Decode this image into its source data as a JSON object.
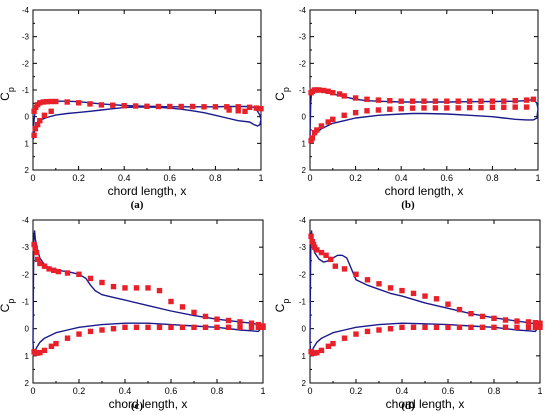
{
  "figure": {
    "captions": [
      "(a)",
      "(b)",
      "(c)",
      "(d)"
    ]
  },
  "colors": {
    "line": "#1a1a8c",
    "marker": "#e8202a",
    "axis": "#000000",
    "background": "#ffffff"
  },
  "chart_data": [
    {
      "type": "line",
      "panel": "a",
      "xlabel": "chord length, x",
      "ylabel": "Cp",
      "xlim": [
        0,
        1
      ],
      "ylim": [
        -4,
        2
      ],
      "y_inverted": true,
      "xticks": [
        0,
        0.2,
        0.4,
        0.6,
        0.8,
        1
      ],
      "xtick_labels": [
        "0",
        "0.2",
        "0.4",
        "0.6",
        "0.8",
        "1"
      ],
      "yticks": [
        -4,
        -3,
        -2,
        -1,
        0,
        1,
        2
      ],
      "ytick_labels": [
        "-4",
        "-3",
        "-2",
        "-1",
        "0",
        "1",
        "2"
      ],
      "grid": false,
      "series": [
        {
          "kind": "line",
          "x": [
            0,
            0.005,
            0.01,
            0.02,
            0.04,
            0.06,
            0.1,
            0.15,
            0.2,
            0.25,
            0.3,
            0.35,
            0.4,
            0.45,
            0.5,
            0.55,
            0.6,
            0.65,
            0.7,
            0.75,
            0.8,
            0.85,
            0.9,
            0.94,
            0.97,
            0.985,
            0.995,
            1.0,
            0.995,
            0.985,
            0.97,
            0.95,
            0.9,
            0.85,
            0.8,
            0.75,
            0.7,
            0.65,
            0.6,
            0.55,
            0.5,
            0.45,
            0.4,
            0.35,
            0.3,
            0.25,
            0.2,
            0.15,
            0.1,
            0.06,
            0.04,
            0.02,
            0.01,
            0.005,
            0.003,
            0
          ],
          "y": [
            0.85,
            0.1,
            -0.2,
            -0.4,
            -0.5,
            -0.55,
            -0.58,
            -0.58,
            -0.56,
            -0.52,
            -0.48,
            -0.45,
            -0.42,
            -0.4,
            -0.39,
            -0.38,
            -0.37,
            -0.37,
            -0.37,
            -0.37,
            -0.37,
            -0.38,
            -0.38,
            -0.38,
            -0.35,
            -0.2,
            -0.05,
            0.1,
            0.3,
            0.35,
            0.3,
            0.2,
            0.15,
            0.05,
            -0.05,
            -0.15,
            -0.22,
            -0.28,
            -0.32,
            -0.35,
            -0.36,
            -0.36,
            -0.34,
            -0.3,
            -0.25,
            -0.2,
            -0.16,
            -0.12,
            -0.06,
            0.03,
            0.1,
            0.2,
            0.4,
            0.65,
            0.8,
            0.85
          ]
        },
        {
          "kind": "markers",
          "x": [
            0.005,
            0.012,
            0.02,
            0.03,
            0.045,
            0.06,
            0.08,
            0.1,
            0.15,
            0.2,
            0.25,
            0.3
          ],
          "y": [
            -0.2,
            -0.35,
            -0.45,
            -0.52,
            -0.55,
            -0.56,
            -0.57,
            -0.57,
            -0.55,
            -0.52,
            -0.48,
            -0.44
          ]
        },
        {
          "kind": "markers",
          "x": [
            0.35,
            0.4,
            0.45,
            0.5,
            0.55,
            0.6,
            0.65,
            0.7,
            0.75,
            0.8,
            0.85,
            0.9,
            0.95,
            0.98,
            1.0
          ],
          "y": [
            -0.43,
            -0.41,
            -0.4,
            -0.39,
            -0.38,
            -0.38,
            -0.38,
            -0.38,
            -0.37,
            -0.37,
            -0.37,
            -0.37,
            -0.35,
            -0.32,
            -0.3
          ]
        },
        {
          "kind": "markers",
          "x": [
            0.005,
            0.01,
            0.02,
            0.03,
            0.05,
            0.08
          ],
          "y": [
            0.7,
            0.45,
            0.3,
            0.15,
            -0.05,
            -0.2
          ]
        },
        {
          "kind": "markers",
          "x": [
            0.86,
            0.9,
            0.93
          ],
          "y": [
            -0.25,
            -0.22,
            -0.2
          ]
        }
      ]
    },
    {
      "type": "line",
      "panel": "b",
      "xlabel": "chord length, x",
      "ylabel": "Cp",
      "xlim": [
        0,
        1
      ],
      "ylim": [
        -4,
        2
      ],
      "y_inverted": true,
      "xticks": [
        0,
        0.2,
        0.4,
        0.6,
        0.8,
        1
      ],
      "xtick_labels": [
        "0",
        "0.2",
        "0.4",
        "0.6",
        "0.8",
        "1"
      ],
      "yticks": [
        -4,
        -3,
        -2,
        -1,
        0,
        1,
        2
      ],
      "ytick_labels": [
        "-4",
        "-3",
        "-2",
        "-1",
        "0",
        "1",
        "2"
      ],
      "grid": false,
      "series": [
        {
          "kind": "line",
          "x": [
            0,
            0.003,
            0.006,
            0.01,
            0.02,
            0.03,
            0.05,
            0.08,
            0.1,
            0.15,
            0.2,
            0.25,
            0.3,
            0.4,
            0.5,
            0.6,
            0.7,
            0.8,
            0.9,
            0.95,
            0.98,
            0.995,
            1.0,
            0.995,
            0.98,
            0.95,
            0.9,
            0.85,
            0.8,
            0.7,
            0.6,
            0.5,
            0.45,
            0.4,
            0.3,
            0.2,
            0.15,
            0.1,
            0.05,
            0.03,
            0.015,
            0.006,
            0.002,
            0
          ],
          "y": [
            0.8,
            -0.5,
            -0.85,
            -0.95,
            -1.0,
            -0.98,
            -0.95,
            -0.9,
            -0.85,
            -0.75,
            -0.65,
            -0.6,
            -0.58,
            -0.55,
            -0.55,
            -0.55,
            -0.56,
            -0.57,
            -0.58,
            -0.6,
            -0.65,
            -0.5,
            -0.3,
            0.05,
            0.12,
            0.12,
            0.1,
            0.05,
            0.0,
            -0.05,
            -0.1,
            -0.12,
            -0.12,
            -0.1,
            -0.05,
            0.05,
            0.15,
            0.25,
            0.45,
            0.6,
            0.75,
            0.82,
            0.82,
            0.8
          ]
        },
        {
          "kind": "markers",
          "x": [
            0.005,
            0.01,
            0.02,
            0.03,
            0.04,
            0.06,
            0.08,
            0.1,
            0.13,
            0.15,
            0.2,
            0.25,
            0.3,
            0.35,
            0.4,
            0.45,
            0.5,
            0.55,
            0.6,
            0.65,
            0.7,
            0.75,
            0.8,
            0.85,
            0.9,
            0.95,
            0.98
          ],
          "y": [
            -0.9,
            -0.95,
            -1.0,
            -1.0,
            -1.0,
            -0.98,
            -0.95,
            -0.9,
            -0.85,
            -0.78,
            -0.7,
            -0.65,
            -0.62,
            -0.6,
            -0.58,
            -0.58,
            -0.58,
            -0.58,
            -0.58,
            -0.58,
            -0.58,
            -0.58,
            -0.58,
            -0.58,
            -0.6,
            -0.62,
            -0.65
          ]
        },
        {
          "kind": "markers",
          "x": [
            0.005,
            0.01,
            0.02,
            0.03,
            0.05,
            0.08,
            0.1,
            0.15,
            0.2,
            0.25,
            0.3,
            0.35,
            0.4,
            0.45,
            0.5,
            0.55,
            0.6,
            0.65,
            0.7,
            0.75,
            0.8,
            0.85,
            0.9,
            0.95
          ],
          "y": [
            0.9,
            0.8,
            0.6,
            0.5,
            0.35,
            0.2,
            0.1,
            -0.05,
            -0.15,
            -0.22,
            -0.25,
            -0.28,
            -0.3,
            -0.32,
            -0.33,
            -0.33,
            -0.33,
            -0.33,
            -0.34,
            -0.34,
            -0.35,
            -0.35,
            -0.36,
            -0.36
          ]
        }
      ]
    },
    {
      "type": "line",
      "panel": "c",
      "xlabel": "chord length, x",
      "ylabel": "Cp",
      "xlim": [
        0,
        1
      ],
      "ylim": [
        -4,
        2
      ],
      "y_inverted": true,
      "xticks": [
        0,
        0.2,
        0.4,
        0.6,
        0.8,
        1
      ],
      "xtick_labels": [
        "0",
        "0.2",
        "0.4",
        "0.6",
        "0.8",
        "1"
      ],
      "yticks": [
        -4,
        -3,
        -2,
        -1,
        0,
        1,
        2
      ],
      "ytick_labels": [
        "-4",
        "-3",
        "-2",
        "-1",
        "0",
        "1",
        "2"
      ],
      "grid": false,
      "series": [
        {
          "kind": "line",
          "x": [
            0,
            0.002,
            0.004,
            0.007,
            0.01,
            0.02,
            0.03,
            0.05,
            0.08,
            0.1,
            0.15,
            0.2,
            0.23,
            0.25,
            0.27,
            0.3,
            0.35,
            0.4,
            0.5,
            0.6,
            0.7,
            0.8,
            0.9,
            0.95,
            0.98,
            1.0,
            0.98,
            0.95,
            0.9,
            0.8,
            0.7,
            0.6,
            0.5,
            0.45,
            0.4,
            0.3,
            0.2,
            0.15,
            0.1,
            0.05,
            0.03,
            0.015,
            0.008,
            0.003,
            0
          ],
          "y": [
            0.5,
            -2.0,
            -3.3,
            -3.6,
            -3.3,
            -2.9,
            -2.6,
            -2.35,
            -2.2,
            -2.15,
            -2.1,
            -2.0,
            -1.85,
            -1.6,
            -1.4,
            -1.25,
            -1.15,
            -1.05,
            -0.85,
            -0.65,
            -0.48,
            -0.35,
            -0.25,
            -0.2,
            -0.15,
            -0.1,
            0.1,
            0.08,
            0.05,
            -0.05,
            -0.1,
            -0.15,
            -0.2,
            -0.2,
            -0.2,
            -0.15,
            -0.05,
            0.05,
            0.15,
            0.35,
            0.5,
            0.7,
            0.85,
            0.9,
            0.5
          ]
        },
        {
          "kind": "markers",
          "x": [
            0.005,
            0.01,
            0.015,
            0.02,
            0.03,
            0.05,
            0.07,
            0.09,
            0.11,
            0.15,
            0.2,
            0.25,
            0.3,
            0.35,
            0.4,
            0.45,
            0.5,
            0.55,
            0.6,
            0.65,
            0.7,
            0.75,
            0.8,
            0.85,
            0.9,
            0.95,
            0.98,
            1.0
          ],
          "y": [
            -3.1,
            -2.95,
            -2.8,
            -2.55,
            -2.4,
            -2.3,
            -2.2,
            -2.15,
            -2.1,
            -2.05,
            -2.0,
            -1.85,
            -1.7,
            -1.55,
            -1.5,
            -1.5,
            -1.5,
            -1.4,
            -1.0,
            -0.8,
            -0.6,
            -0.45,
            -0.35,
            -0.3,
            -0.25,
            -0.2,
            -0.15,
            -0.1
          ]
        },
        {
          "kind": "markers",
          "x": [
            0.005,
            0.01,
            0.02,
            0.03,
            0.05,
            0.08,
            0.1,
            0.15,
            0.2,
            0.25,
            0.3,
            0.35,
            0.4,
            0.45,
            0.5,
            0.55,
            0.6,
            0.65,
            0.7,
            0.75,
            0.8,
            0.85,
            0.9,
            0.95,
            0.98,
            1.0
          ],
          "y": [
            0.85,
            0.9,
            0.9,
            0.88,
            0.8,
            0.65,
            0.55,
            0.35,
            0.2,
            0.1,
            0.05,
            0.0,
            -0.05,
            -0.05,
            -0.05,
            -0.05,
            -0.05,
            -0.05,
            -0.05,
            -0.05,
            -0.05,
            -0.05,
            -0.05,
            -0.05,
            -0.05,
            -0.05
          ]
        }
      ]
    },
    {
      "type": "line",
      "panel": "d",
      "xlabel": "chord length, x",
      "ylabel": "Cp",
      "xlim": [
        0,
        1
      ],
      "ylim": [
        -4,
        2
      ],
      "y_inverted": true,
      "xticks": [
        0,
        0.2,
        0.4,
        0.6,
        0.8,
        1
      ],
      "xtick_labels": [
        "0",
        "0.2",
        "0.4",
        "0.6",
        "0.8",
        "1"
      ],
      "yticks": [
        -4,
        -3,
        -2,
        -1,
        0,
        1,
        2
      ],
      "ytick_labels": [
        "-4",
        "-3",
        "-2",
        "-1",
        "0",
        "1",
        "2"
      ],
      "grid": false,
      "series": [
        {
          "kind": "line",
          "x": [
            0,
            0.002,
            0.004,
            0.007,
            0.01,
            0.02,
            0.04,
            0.06,
            0.08,
            0.1,
            0.12,
            0.14,
            0.16,
            0.18,
            0.2,
            0.25,
            0.3,
            0.35,
            0.4,
            0.5,
            0.6,
            0.7,
            0.8,
            0.9,
            0.95,
            0.98,
            1.0,
            0.98,
            0.95,
            0.9,
            0.8,
            0.7,
            0.6,
            0.5,
            0.4,
            0.3,
            0.2,
            0.15,
            0.1,
            0.05,
            0.03,
            0.015,
            0.008,
            0.003,
            0
          ],
          "y": [
            0.5,
            -2.0,
            -3.3,
            -3.6,
            -3.2,
            -2.8,
            -2.55,
            -2.45,
            -2.5,
            -2.6,
            -2.7,
            -2.7,
            -2.6,
            -2.2,
            -1.8,
            -1.6,
            -1.45,
            -1.3,
            -1.2,
            -0.95,
            -0.75,
            -0.55,
            -0.4,
            -0.28,
            -0.22,
            -0.18,
            -0.15,
            0.1,
            0.08,
            0.05,
            -0.05,
            -0.1,
            -0.15,
            -0.18,
            -0.2,
            -0.15,
            -0.05,
            0.05,
            0.15,
            0.35,
            0.5,
            0.7,
            0.85,
            0.9,
            0.5
          ]
        },
        {
          "kind": "markers",
          "x": [
            0.005,
            0.01,
            0.015,
            0.02,
            0.03,
            0.05,
            0.07,
            0.09,
            0.11,
            0.15,
            0.2,
            0.25,
            0.3,
            0.35,
            0.4,
            0.45,
            0.5,
            0.55,
            0.6,
            0.65,
            0.7,
            0.75,
            0.8,
            0.85,
            0.9,
            0.95,
            0.98,
            1.0
          ],
          "y": [
            -3.4,
            -3.2,
            -3.1,
            -3.0,
            -2.9,
            -2.8,
            -2.7,
            -2.55,
            -2.3,
            -2.2,
            -2.0,
            -1.8,
            -1.65,
            -1.5,
            -1.4,
            -1.3,
            -1.2,
            -1.1,
            -0.9,
            -0.7,
            -0.55,
            -0.45,
            -0.38,
            -0.32,
            -0.28,
            -0.25,
            -0.22,
            -0.2
          ]
        },
        {
          "kind": "markers",
          "x": [
            0.005,
            0.01,
            0.02,
            0.03,
            0.05,
            0.08,
            0.1,
            0.15,
            0.2,
            0.25,
            0.3,
            0.35,
            0.4,
            0.45,
            0.5,
            0.55,
            0.6,
            0.65,
            0.7,
            0.75,
            0.8,
            0.85,
            0.9,
            0.95,
            0.98,
            1.0
          ],
          "y": [
            0.85,
            0.9,
            0.9,
            0.88,
            0.8,
            0.65,
            0.55,
            0.35,
            0.2,
            0.1,
            0.05,
            0.0,
            -0.05,
            -0.05,
            -0.05,
            -0.05,
            -0.05,
            -0.05,
            -0.05,
            -0.05,
            -0.05,
            -0.05,
            -0.05,
            -0.05,
            -0.05,
            -0.05
          ]
        }
      ]
    }
  ]
}
